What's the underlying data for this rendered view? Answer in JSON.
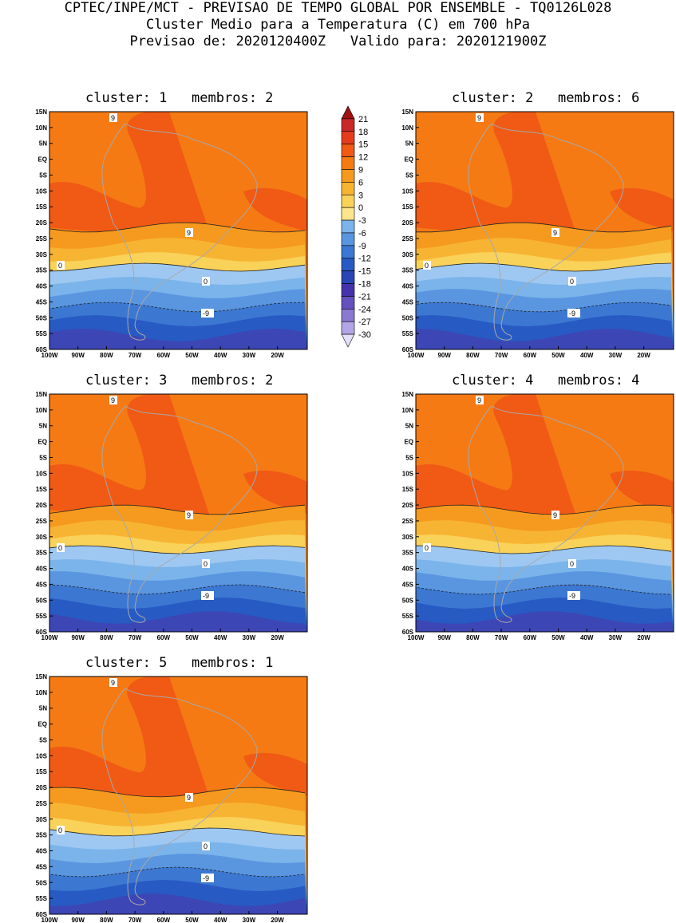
{
  "header": {
    "line1": "CPTEC/INPE/MCT - PREVISAO DE TEMPO GLOBAL POR ENSEMBLE - TQ0126L028",
    "line2": "Cluster Medio para a Temperatura (C) em 700 hPa",
    "line3": "Previsao de: 2020120400Z   Valido para: 2020121900Z"
  },
  "panels": [
    {
      "title": "cluster: 1   membros: 2"
    },
    {
      "title": "cluster: 2   membros: 6"
    },
    {
      "title": "cluster: 3   membros: 2"
    },
    {
      "title": "cluster: 4   membros: 4"
    },
    {
      "title": "cluster: 5   membros: 1"
    }
  ],
  "axes": {
    "lat_labels": [
      "15N",
      "10N",
      "5N",
      "EQ",
      "5S",
      "10S",
      "15S",
      "20S",
      "25S",
      "30S",
      "35S",
      "40S",
      "45S",
      "50S",
      "55S",
      "60S"
    ],
    "lon_labels": [
      "100W",
      "90W",
      "80W",
      "70W",
      "60W",
      "50W",
      "40W",
      "30W",
      "20W"
    ]
  },
  "contour_labels": [
    "9",
    "0",
    "-9"
  ],
  "colorbar": {
    "labels": [
      "21",
      "18",
      "15",
      "12",
      "9",
      "6",
      "3",
      "0",
      "-3",
      "-6",
      "-9",
      "-12",
      "-15",
      "-18",
      "-21",
      "-24",
      "-27",
      "-30"
    ],
    "colors": [
      "#a01010",
      "#c82828",
      "#e63c1e",
      "#f05a14",
      "#f57a14",
      "#f59a1e",
      "#f7b432",
      "#f9d25a",
      "#fbe68c",
      "#7ab4ea",
      "#5a96e0",
      "#3c78d2",
      "#285ac3",
      "#2846b4",
      "#4632aa",
      "#6450be",
      "#8a78d2",
      "#b4a5e6",
      "#e6e1f8"
    ]
  }
}
